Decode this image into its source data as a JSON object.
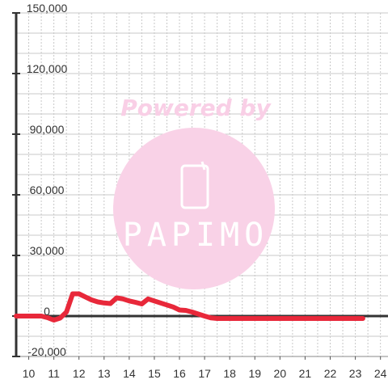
{
  "chart_data": {
    "type": "line",
    "title": "",
    "xlabel": "",
    "ylabel": "",
    "xlim": [
      9.5,
      24.3
    ],
    "ylim": [
      -20000,
      150000
    ],
    "x_ticks": [
      "10",
      "11",
      "12",
      "13",
      "14",
      "15",
      "16",
      "17",
      "18",
      "19",
      "20",
      "21",
      "22",
      "23",
      "24"
    ],
    "y_ticks": [
      "150,000",
      "120,000",
      "90,000",
      "60,000",
      "30,000",
      "0",
      "-20,000"
    ],
    "y_tick_values": [
      150000,
      120000,
      90000,
      60000,
      30000,
      0,
      -20000
    ],
    "grid": true,
    "series": [
      {
        "color": "#e8283a",
        "points": [
          [
            9.5,
            0
          ],
          [
            10,
            0
          ],
          [
            10.25,
            0
          ],
          [
            10.5,
            0
          ],
          [
            10.75,
            -800
          ],
          [
            11,
            -2000
          ],
          [
            11.25,
            -1000
          ],
          [
            11.5,
            2000
          ],
          [
            11.75,
            11000
          ],
          [
            12,
            11000
          ],
          [
            12.25,
            9500
          ],
          [
            12.5,
            8000
          ],
          [
            12.75,
            7000
          ],
          [
            13,
            6500
          ],
          [
            13.25,
            6200
          ],
          [
            13.5,
            9000
          ],
          [
            13.75,
            8500
          ],
          [
            14,
            7500
          ],
          [
            14.25,
            6800
          ],
          [
            14.5,
            6000
          ],
          [
            14.75,
            8500
          ],
          [
            15,
            7500
          ],
          [
            15.25,
            6500
          ],
          [
            15.5,
            5500
          ],
          [
            15.75,
            4500
          ],
          [
            16,
            3000
          ],
          [
            16.25,
            2800
          ],
          [
            16.5,
            2000
          ],
          [
            16.75,
            1000
          ],
          [
            17,
            0
          ],
          [
            17.25,
            -900
          ],
          [
            17.5,
            -1200
          ],
          [
            18,
            -1200
          ],
          [
            19,
            -1200
          ],
          [
            20,
            -1200
          ],
          [
            21,
            -1200
          ],
          [
            22,
            -1200
          ],
          [
            23,
            -1200
          ],
          [
            23.3,
            -1200
          ]
        ]
      }
    ]
  },
  "watermark": {
    "text": "Powered by",
    "logo": "PAPIMO",
    "color": "#f9cfe6"
  }
}
